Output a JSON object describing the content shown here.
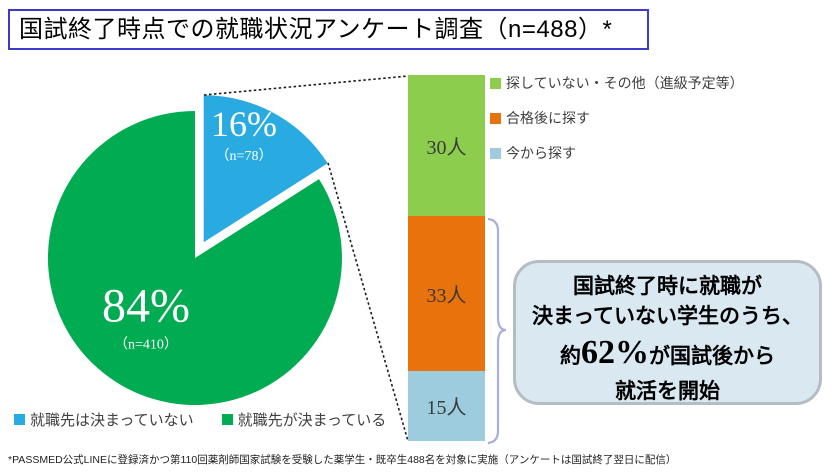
{
  "title": "国試終了時点での就職状況アンケート調査（n=488）*",
  "chart_data": [
    {
      "type": "pie",
      "total": 488,
      "start_angle": "top",
      "direction": "clockwise",
      "legend_position": "bottom-left",
      "slices": [
        {
          "label": "就職先は決まっていない",
          "value": 78,
          "pct_label": "16%",
          "n_label": "（n=78）",
          "color": "#29abe2",
          "exploded": true
        },
        {
          "label": "就職先が決まっている",
          "value": 410,
          "pct_label": "84%",
          "n_label": "（n=410）",
          "color": "#00ab51",
          "exploded": false
        }
      ]
    },
    {
      "type": "bar",
      "stacked": true,
      "total": 78,
      "legend_position": "top-right",
      "segments": [
        {
          "label": "探していない・その他（進級予定等）",
          "value": 30,
          "value_label": "30人",
          "color": "#8ccd4e"
        },
        {
          "label": "合格後に探す",
          "value": 33,
          "value_label": "33人",
          "color": "#e8720c"
        },
        {
          "label": "今から探す",
          "value": 15,
          "value_label": "15人",
          "color": "#9cccdd"
        }
      ]
    }
  ],
  "callout": {
    "line1": "国試終了時に就職が",
    "line2": "決まっていない学生のうち、",
    "line3_prefix": "約",
    "line3_big": "62%",
    "line3_suffix": "が国試後から",
    "line4": "就活を開始"
  },
  "footnote": "*PASSMED公式LINEに登録済かつ第110回薬剤師国家試験を受験した薬学生・既卒生488名を対象に実施（アンケートは国試終了翌日に配信）",
  "colors": {
    "title_border": "#3c3cc8",
    "bracket": "#a9afd9",
    "dotted_line": "#1a1a1a",
    "callout_bg": "#d9e8f1",
    "callout_border": "#b5bcc3"
  }
}
